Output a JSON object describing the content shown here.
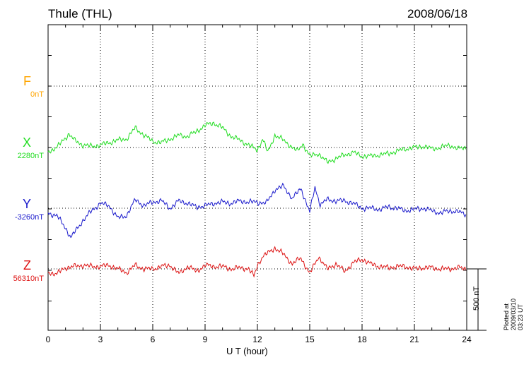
{
  "header": {
    "station": "Thule (THL)",
    "date": "2008/06/18"
  },
  "components": [
    {
      "name": "F",
      "baseline": "0nT",
      "color": "#ffa500"
    },
    {
      "name": "X",
      "baseline": "2280nT",
      "color": "#22dd22"
    },
    {
      "name": "Y",
      "baseline": "-3260nT",
      "color": "#1a1acc"
    },
    {
      "name": "Z",
      "baseline": "56310nT",
      "color": "#dd1111"
    }
  ],
  "scale": {
    "label": "500 nT",
    "value": 500
  },
  "footer": {
    "plotted": "Plotted at 2009/03/10 03:23 UT"
  },
  "chart_data": {
    "type": "line",
    "title": "Thule (THL) 2008/06/18",
    "xlabel": "U T (hour)",
    "ylabel": "",
    "xlim": [
      0,
      24
    ],
    "x_ticks": [
      0,
      3,
      6,
      9,
      12,
      15,
      18,
      21,
      24
    ],
    "y_unit": "nT",
    "grid": true,
    "series": [
      {
        "name": "F",
        "baseline": 0,
        "x": [],
        "values": []
      },
      {
        "name": "X",
        "baseline": 2280,
        "x": [
          0,
          0.5,
          1,
          1.2,
          1.5,
          2,
          2.5,
          3,
          3.5,
          4,
          4.5,
          5,
          5.5,
          6,
          6.5,
          7,
          7.5,
          8,
          8.5,
          9,
          9.5,
          10,
          10.5,
          11,
          11.5,
          12,
          12.3,
          12.6,
          13,
          13.5,
          14,
          14.3,
          14.6,
          15,
          15.5,
          16,
          16.5,
          17,
          17.5,
          18,
          18.5,
          19,
          19.5,
          20,
          20.5,
          21,
          21.5,
          22,
          22.5,
          23,
          23.5,
          24
        ],
        "values": [
          -35,
          0,
          80,
          110,
          60,
          20,
          10,
          20,
          40,
          60,
          70,
          160,
          100,
          50,
          40,
          70,
          100,
          90,
          130,
          180,
          200,
          160,
          90,
          60,
          20,
          -20,
          70,
          -40,
          100,
          60,
          0,
          -30,
          30,
          -70,
          -50,
          -120,
          -90,
          -60,
          -40,
          -70,
          -70,
          -60,
          -50,
          -30,
          -10,
          0,
          10,
          -10,
          0,
          20,
          -10,
          0
        ]
      },
      {
        "name": "Y",
        "baseline": -3260,
        "x": [
          0,
          0.5,
          1,
          1.3,
          1.5,
          2,
          2.5,
          3,
          3.5,
          4,
          4.5,
          5,
          5.5,
          6,
          6.5,
          7,
          7.5,
          8,
          8.5,
          9,
          9.5,
          10,
          10.5,
          11,
          11.5,
          12,
          12.5,
          13,
          13.5,
          14,
          14.5,
          15,
          15.3,
          15.6,
          16,
          16.5,
          17,
          17.5,
          18,
          18.5,
          19,
          19.5,
          20,
          20.5,
          21,
          21.5,
          22,
          22.5,
          23,
          23.5,
          24
        ],
        "values": [
          -40,
          -60,
          -160,
          -240,
          -200,
          -100,
          -20,
          40,
          20,
          -80,
          -60,
          70,
          20,
          50,
          60,
          0,
          60,
          40,
          10,
          20,
          40,
          50,
          40,
          60,
          50,
          50,
          40,
          150,
          180,
          80,
          160,
          -30,
          170,
          30,
          70,
          60,
          60,
          40,
          0,
          0,
          -10,
          10,
          0,
          -20,
          -10,
          0,
          -20,
          -40,
          -20,
          -30,
          -50
        ]
      },
      {
        "name": "Z",
        "baseline": 56310,
        "x": [
          0,
          0.5,
          1,
          1.5,
          2,
          2.5,
          3,
          3.5,
          4,
          4.5,
          5,
          5.5,
          6,
          6.5,
          7,
          7.5,
          8,
          8.5,
          9,
          9.5,
          10,
          10.5,
          11,
          11.5,
          11.8,
          12,
          12.3,
          12.6,
          13,
          13.5,
          14,
          14.5,
          15,
          15.5,
          16,
          16.5,
          17,
          17.5,
          18,
          18.5,
          19,
          19.5,
          20,
          20.5,
          21,
          21.5,
          22,
          22.5,
          23,
          23.5,
          24
        ],
        "values": [
          -30,
          -40,
          10,
          20,
          30,
          20,
          20,
          30,
          0,
          -30,
          30,
          0,
          0,
          20,
          30,
          -40,
          20,
          -20,
          30,
          20,
          20,
          0,
          10,
          0,
          -60,
          30,
          100,
          130,
          170,
          120,
          40,
          90,
          -40,
          100,
          0,
          40,
          -20,
          50,
          80,
          40,
          20,
          10,
          20,
          20,
          0,
          10,
          10,
          0,
          0,
          10,
          0
        ]
      }
    ]
  }
}
